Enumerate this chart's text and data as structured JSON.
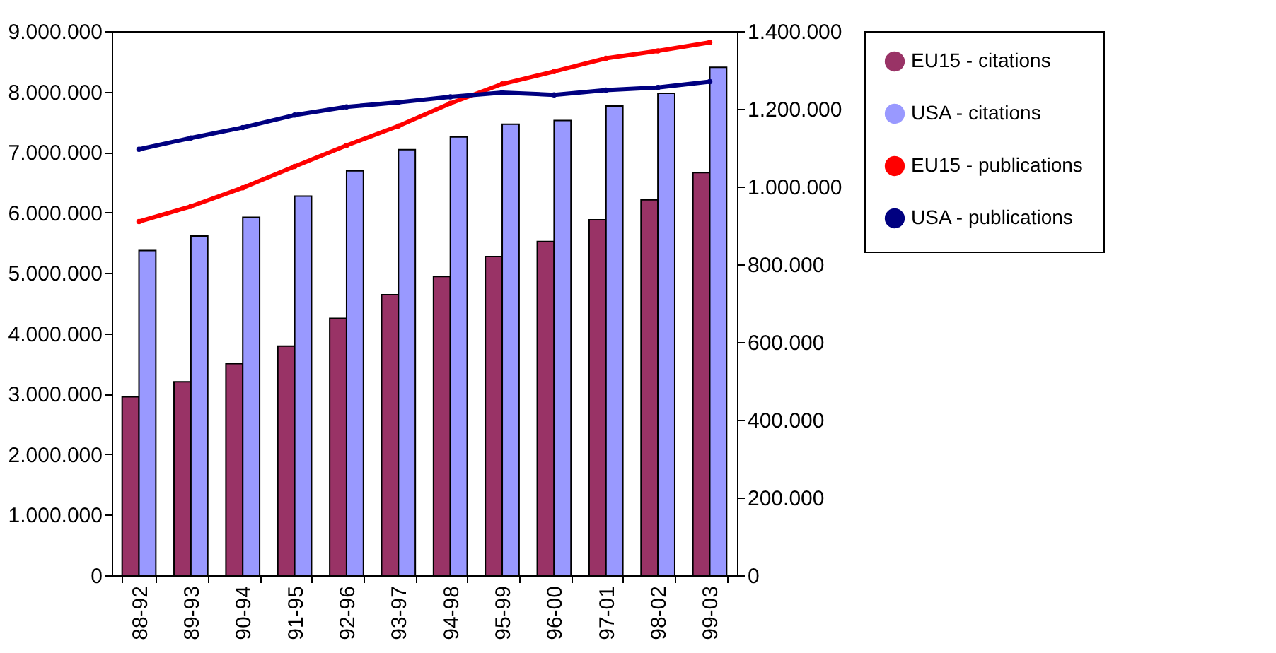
{
  "chart_data": {
    "type": "bar",
    "categories": [
      "88-92",
      "89-93",
      "90-94",
      "91-95",
      "92-96",
      "93-97",
      "94-98",
      "95-99",
      "96-00",
      "97-01",
      "98-02",
      "99-03"
    ],
    "series": [
      {
        "name": "EU15 - citations",
        "color": "#993366",
        "values": [
          2950000,
          3200000,
          3500000,
          3790000,
          4250000,
          4640000,
          4940000,
          5270000,
          5520000,
          5880000,
          6210000,
          6660000
        ]
      },
      {
        "name": "USA - citations",
        "color": "#9999ff",
        "values": [
          5370000,
          5610000,
          5920000,
          6270000,
          6690000,
          7040000,
          7250000,
          7460000,
          7520000,
          7760000,
          7970000,
          8400000
        ]
      },
      {
        "name": "EU15 - publications",
        "type": "line",
        "axis": "y2",
        "color": "#ff0000",
        "values": [
          910000,
          949000,
          997000,
          1052000,
          1106000,
          1156000,
          1214000,
          1264000,
          1296000,
          1330000,
          1349000,
          1371000
        ]
      },
      {
        "name": "USA - publications",
        "type": "line",
        "axis": "y2",
        "color": "#000080",
        "values": [
          1096000,
          1125000,
          1152000,
          1184000,
          1205000,
          1217000,
          1231000,
          1242000,
          1236000,
          1248000,
          1255000,
          1270000
        ]
      }
    ],
    "ylim": [
      0,
      9000000
    ],
    "yticks": [
      {
        "value": 0,
        "label": "0"
      },
      {
        "value": 1000000,
        "label": "1.000.000"
      },
      {
        "value": 2000000,
        "label": "2.000.000"
      },
      {
        "value": 3000000,
        "label": "3.000.000"
      },
      {
        "value": 4000000,
        "label": "4.000.000"
      },
      {
        "value": 5000000,
        "label": "5.000.000"
      },
      {
        "value": 6000000,
        "label": "6.000.000"
      },
      {
        "value": 7000000,
        "label": "7.000.000"
      },
      {
        "value": 8000000,
        "label": "8.000.000"
      },
      {
        "value": 9000000,
        "label": "9.000.000"
      }
    ],
    "y2lim": [
      0,
      1400000
    ],
    "y2ticks": [
      {
        "value": 0,
        "label": "0"
      },
      {
        "value": 200000,
        "label": "200.000"
      },
      {
        "value": 400000,
        "label": "400.000"
      },
      {
        "value": 600000,
        "label": "600.000"
      },
      {
        "value": 800000,
        "label": "800.000"
      },
      {
        "value": 1000000,
        "label": "1.000.000"
      },
      {
        "value": 1200000,
        "label": "1.200.000"
      },
      {
        "value": 1400000,
        "label": "1.400.000"
      }
    ],
    "grid": false,
    "legend": "right",
    "marker": "circle",
    "line_style": "solid"
  }
}
